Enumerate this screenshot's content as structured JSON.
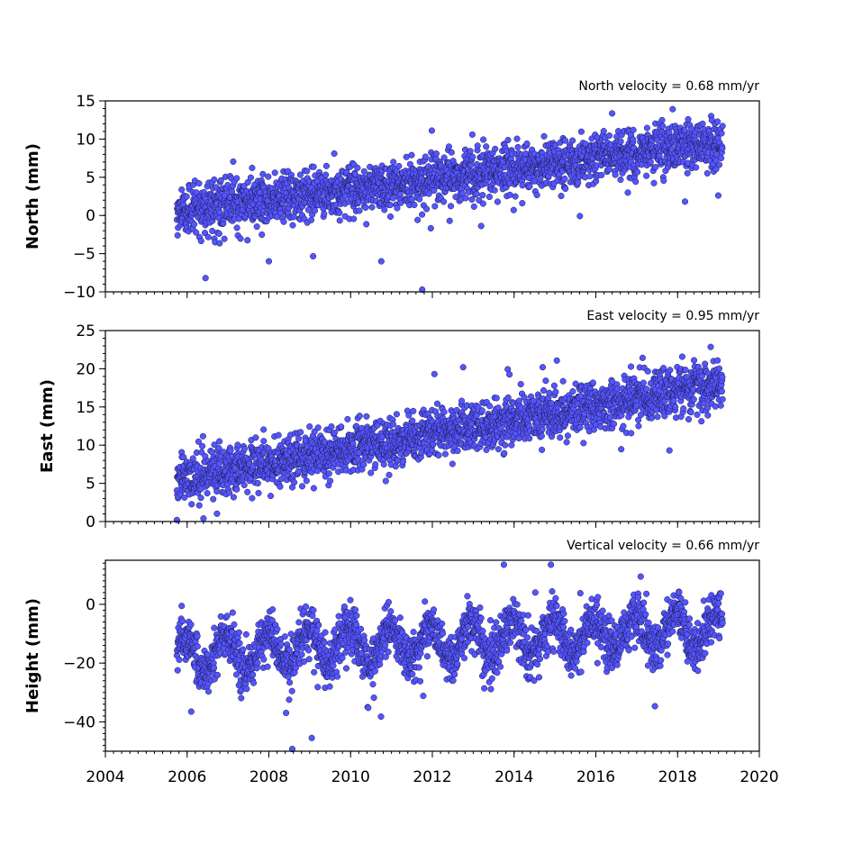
{
  "chart_data": [
    {
      "type": "scatter",
      "title": "North velocity = 0.68 mm/yr",
      "ylabel": "North (mm)",
      "xlim": [
        2004,
        2020
      ],
      "ylim": [
        -10,
        15
      ],
      "yticks": [
        15,
        10,
        5,
        0,
        -5,
        -10
      ],
      "y_minor_step": 1,
      "show_xtick_labels": false,
      "color": "#5555ff",
      "series": [
        {
          "x_start": 2005.75,
          "x_end": 2019.1,
          "velocity_mm_per_yr": 0.68,
          "value_at_start": 0.5,
          "scatter_sd": 1.6,
          "outliers": [
            [
              2006.45,
              -8.2
            ],
            [
              2009.6,
              8.1
            ],
            [
              2011.75,
              -9.7
            ],
            [
              2008.0,
              -6.0
            ],
            [
              2010.75,
              -6.0
            ]
          ]
        }
      ]
    },
    {
      "type": "scatter",
      "title": "East velocity = 0.95 mm/yr",
      "ylabel": "East (mm)",
      "xlim": [
        2004,
        2020
      ],
      "ylim": [
        0,
        25
      ],
      "yticks": [
        25,
        20,
        15,
        10,
        5,
        0
      ],
      "y_minor_step": 1,
      "show_xtick_labels": false,
      "color": "#5555ff",
      "series": [
        {
          "x_start": 2005.75,
          "x_end": 2019.1,
          "velocity_mm_per_yr": 0.95,
          "value_at_start": 5.5,
          "scatter_sd": 1.5,
          "outliers": [
            [
              2005.75,
              0.2
            ],
            [
              2006.4,
              0.4
            ],
            [
              2012.05,
              19.3
            ],
            [
              2014.7,
              20.2
            ],
            [
              2017.8,
              9.3
            ]
          ]
        }
      ]
    },
    {
      "type": "scatter",
      "title": "Vertical velocity = 0.66 mm/yr",
      "ylabel": "Height (mm)",
      "xlim": [
        2004,
        2020
      ],
      "ylim": [
        -50,
        15
      ],
      "yticks": [
        0,
        -20,
        -40
      ],
      "y_minor_step": 2,
      "show_xtick_labels": true,
      "xticks": [
        2004,
        2006,
        2008,
        2010,
        2012,
        2014,
        2016,
        2018,
        2020
      ],
      "x_minor_step": 0.2,
      "color": "#5555ff",
      "series": [
        {
          "x_start": 2005.75,
          "x_end": 2019.1,
          "velocity_mm_per_yr": 0.66,
          "value_at_start": -17,
          "seasonal_amplitude_mm": 6,
          "scatter_sd": 4,
          "outliers": [
            [
              2009.05,
              -45.5
            ],
            [
              2006.1,
              -36.5
            ],
            [
              2013.75,
              13.5
            ],
            [
              2014.9,
              13.5
            ]
          ]
        }
      ]
    }
  ]
}
